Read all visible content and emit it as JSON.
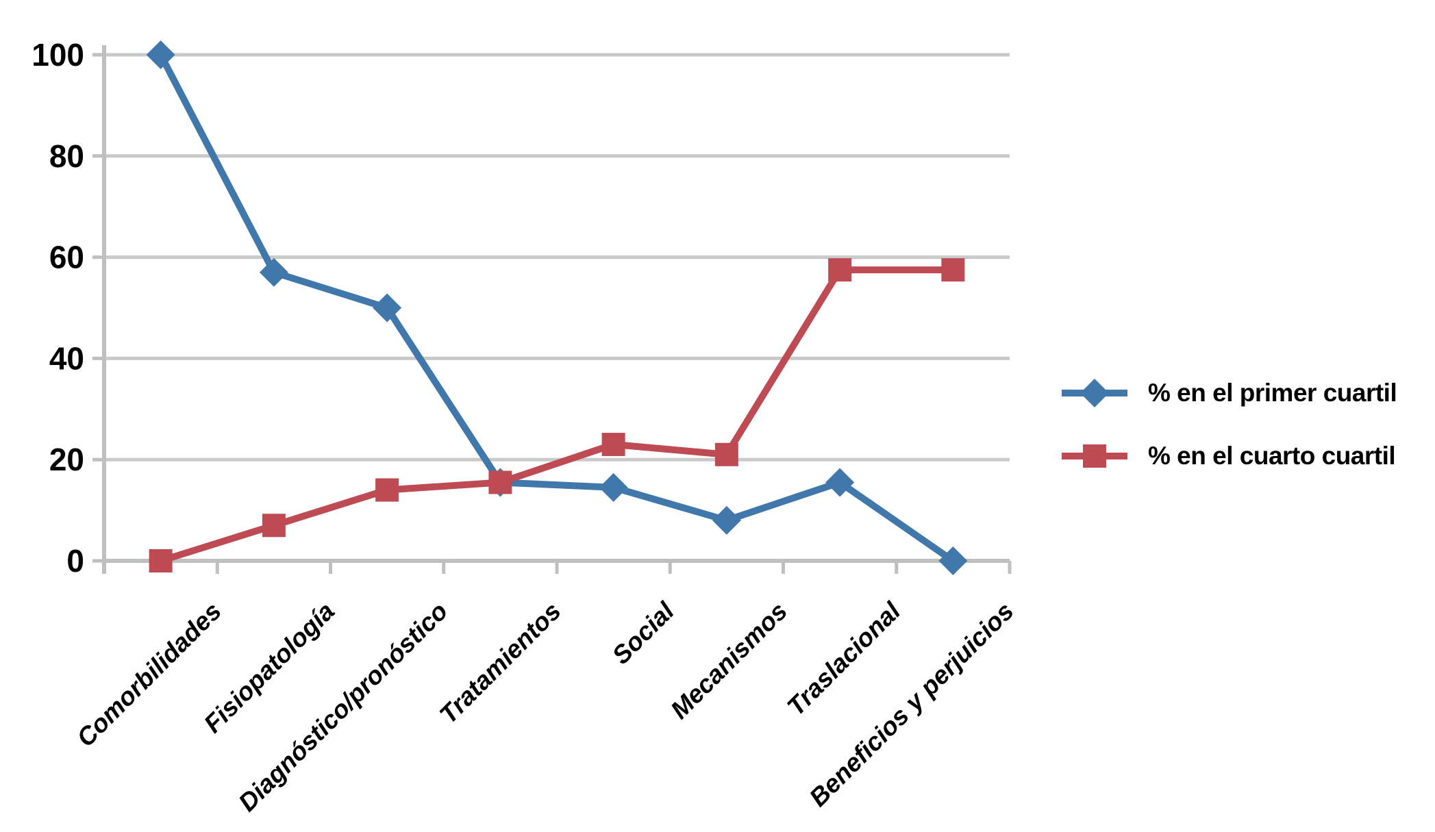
{
  "chart_data": {
    "type": "line",
    "title": "",
    "xlabel": "",
    "ylabel": "",
    "categories": [
      "Comorbilidades",
      "Fisiopatología",
      "Diagnóstico/pronóstico",
      "Tratamientos",
      "Social",
      "Mecanismos",
      "Traslacional",
      "Beneficios y perjuicios"
    ],
    "series": [
      {
        "name": "% en el primer cuartil",
        "marker": "diamond",
        "color": "#4178AB",
        "values": [
          100,
          57,
          50,
          15.5,
          14.5,
          8,
          15.5,
          0
        ]
      },
      {
        "name": "% en el cuarto cuartil",
        "marker": "square",
        "color": "#BE4B53",
        "values": [
          0,
          7,
          14,
          15.5,
          23,
          21,
          57.5,
          57.5
        ]
      }
    ],
    "ylim": [
      0,
      100
    ],
    "yticks": [
      0,
      20,
      40,
      60,
      80,
      100
    ],
    "grid": "horizontal",
    "legend_position": "right"
  },
  "colors": {
    "background": "#FFFFFF",
    "grid": "#C9C9C9",
    "axis": "#BFBFBF",
    "tick_label": "#000000",
    "legend_text": "#000000"
  }
}
